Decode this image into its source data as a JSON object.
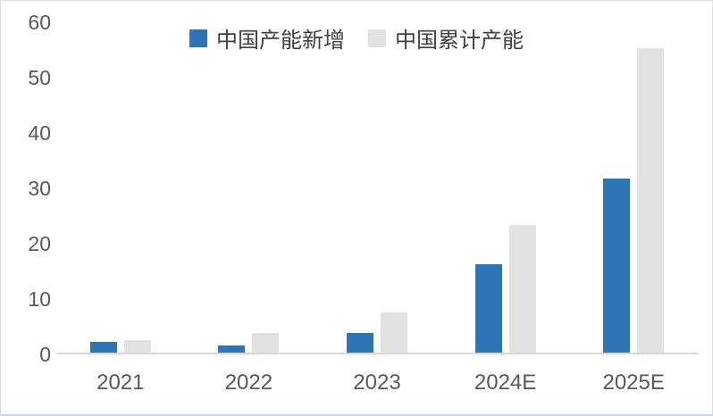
{
  "chart_data": {
    "type": "bar",
    "title": "",
    "xlabel": "",
    "ylabel": "",
    "categories": [
      "2021",
      "2022",
      "2023",
      "2024E",
      "2025E"
    ],
    "series": [
      {
        "id": "new-capacity-added",
        "name": "中国产能新增",
        "color": "#2e75b6",
        "values": [
          2,
          1.3,
          3.6,
          16,
          31.5
        ]
      },
      {
        "id": "cumulative-capacity",
        "name": "中国累计产能",
        "color": "#e2e2e2",
        "values": [
          2.2,
          3.5,
          7.2,
          23,
          55
        ]
      }
    ],
    "ylim": [
      0,
      60
    ],
    "yticks": [
      0,
      10,
      20,
      30,
      40,
      50,
      60
    ],
    "grid": false,
    "legend_position": "top-center",
    "axis_text_color": "#595959",
    "legend_text_color": "#404040",
    "axis_line_color": "#d6d6d6"
  }
}
